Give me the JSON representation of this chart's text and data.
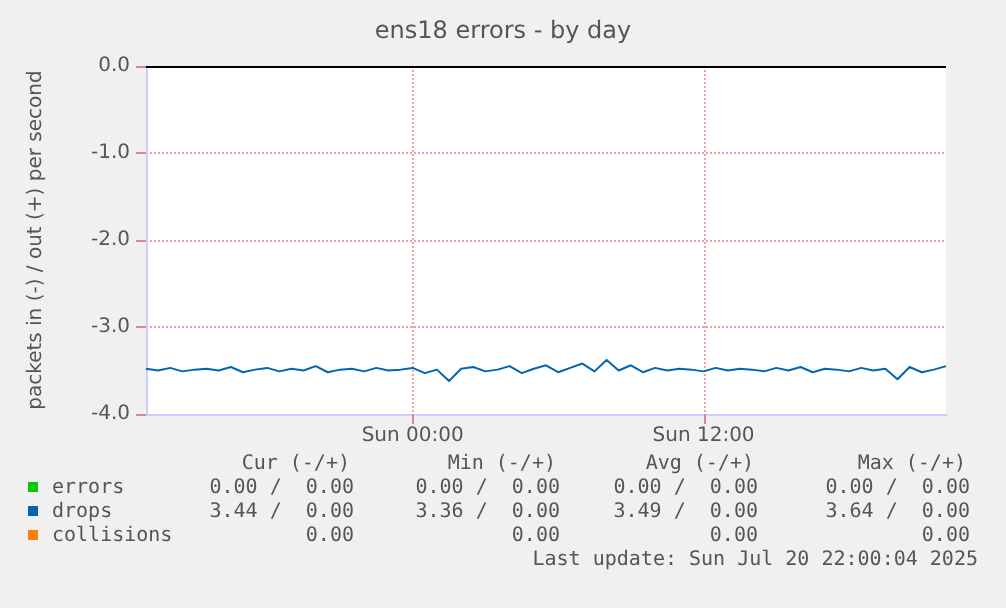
{
  "chart_data": {
    "type": "line",
    "title": "ens18 errors - by day",
    "ylabel": "packets in (-) / out (+) per second",
    "ylim": [
      -4,
      0
    ],
    "yticks": [
      {
        "value": -4,
        "label": "-4.0"
      },
      {
        "value": -3,
        "label": "-3.0"
      },
      {
        "value": -2,
        "label": "-2.0"
      },
      {
        "value": -1,
        "label": "-1.0"
      },
      {
        "value": 0,
        "label": "0.0"
      }
    ],
    "grid": true,
    "legend": "bottom",
    "categories": [
      null,
      null,
      null,
      null,
      null,
      null,
      null,
      null,
      null,
      null,
      null,
      null,
      null,
      null,
      null,
      null,
      null,
      null,
      null,
      null,
      null,
      null,
      "Sun 00:00",
      null,
      null,
      null,
      null,
      null,
      null,
      null,
      null,
      null,
      null,
      null,
      null,
      null,
      null,
      null,
      null,
      null,
      null,
      null,
      null,
      null,
      null,
      null,
      "Sun 12:00",
      null,
      null,
      null,
      null,
      null,
      null,
      null,
      null,
      null,
      null,
      null,
      null,
      null,
      null,
      null,
      null,
      null,
      null,
      null,
      null
    ],
    "series": [
      {
        "name": "errors",
        "color": "#00cc00",
        "values": [
          null,
          null,
          null,
          null,
          null,
          null,
          null,
          null,
          null,
          null,
          null,
          null,
          null,
          null,
          null,
          null,
          null,
          null,
          null,
          null,
          null,
          null,
          null,
          null,
          null,
          null,
          null,
          null,
          null,
          null,
          null,
          null,
          null,
          null,
          null,
          null,
          null,
          null,
          null,
          null,
          null,
          null,
          null,
          null,
          null,
          null,
          null,
          null,
          null,
          null,
          null,
          null,
          null,
          null,
          null,
          null,
          null,
          null,
          null,
          null,
          null,
          null,
          null,
          null,
          null,
          null,
          null
        ]
      },
      {
        "name": "drops",
        "color": "#0066b3",
        "values": [
          -3.48,
          -3.5,
          -3.47,
          -3.51,
          -3.49,
          -3.48,
          -3.5,
          -3.46,
          -3.52,
          -3.49,
          -3.47,
          -3.51,
          -3.48,
          -3.5,
          -3.45,
          -3.52,
          -3.49,
          -3.48,
          -3.51,
          -3.47,
          -3.5,
          -3.49,
          -3.47,
          -3.53,
          -3.49,
          -3.62,
          -3.48,
          -3.46,
          -3.51,
          -3.49,
          -3.45,
          -3.53,
          -3.48,
          -3.44,
          -3.52,
          -3.47,
          -3.42,
          -3.51,
          -3.38,
          -3.5,
          -3.44,
          -3.52,
          -3.47,
          -3.5,
          -3.48,
          -3.49,
          -3.51,
          -3.47,
          -3.5,
          -3.48,
          -3.49,
          -3.51,
          -3.47,
          -3.5,
          -3.46,
          -3.52,
          -3.48,
          -3.49,
          -3.51,
          -3.47,
          -3.5,
          -3.48,
          -3.6,
          -3.46,
          -3.52,
          -3.49,
          -3.45
        ]
      },
      {
        "name": "collisions",
        "color": "#ff8000",
        "values": [
          null,
          null,
          null,
          null,
          null,
          null,
          null,
          null,
          null,
          null,
          null,
          null,
          null,
          null,
          null,
          null,
          null,
          null,
          null,
          null,
          null,
          null,
          null,
          null,
          null,
          null,
          null,
          null,
          null,
          null,
          null,
          null,
          null,
          null,
          null,
          null,
          null,
          null,
          null,
          null,
          null,
          null,
          null,
          null,
          null,
          null,
          null,
          null,
          null,
          null,
          null,
          null,
          null,
          null,
          null,
          null,
          null,
          null,
          null,
          null,
          null,
          null,
          null,
          null,
          null,
          null,
          null
        ]
      }
    ],
    "ref_lines": [
      {
        "axis": "y",
        "value": 0,
        "color": "#000000"
      }
    ],
    "annotations": [
      "Cur (-/+)",
      "Min (-/+)",
      "Avg (-/+)",
      "Max (-/+)",
      "0.00 /  0.00",
      "0.00 /  0.00",
      "0.00 /  0.00",
      "0.00 /  0.00",
      "3.44 /  0.00",
      "3.36 /  0.00",
      "3.49 /  0.00",
      "3.64 /  0.00",
      "0.00",
      "0.00",
      "0.00",
      "0.00",
      "Last update: Sun Jul 20 22:00:04 2025"
    ]
  }
}
